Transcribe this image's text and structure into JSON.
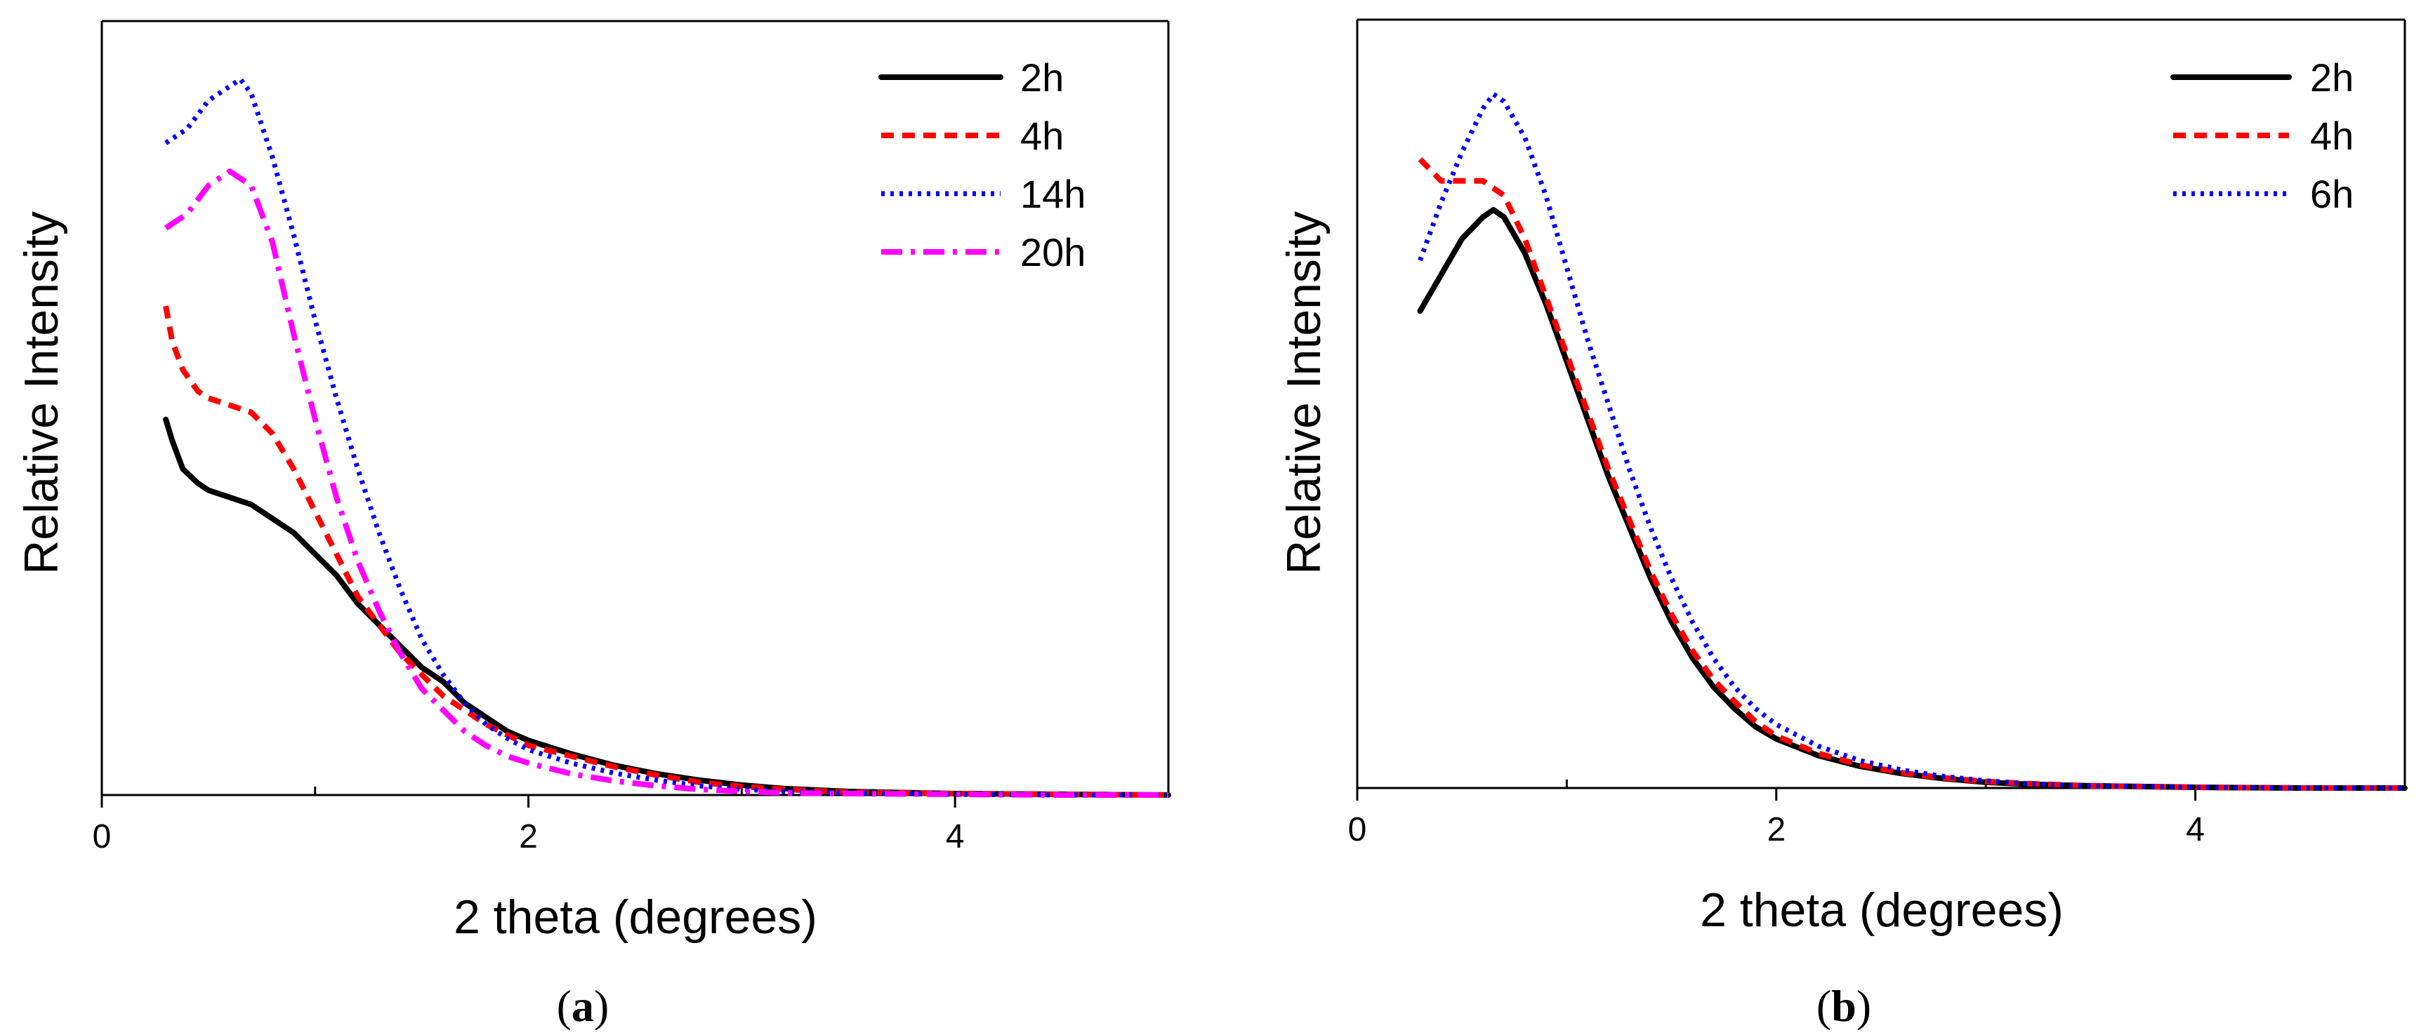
{
  "chart_data": [
    {
      "type": "line",
      "panel_label": "a",
      "title": "",
      "xlabel": "2 theta (degrees)",
      "ylabel": "Relative Intensity",
      "xlim": [
        0,
        5
      ],
      "ylim": [
        0,
        1.0
      ],
      "xticks": [
        0,
        2,
        4
      ],
      "minor_xticks": [
        1,
        3,
        5
      ],
      "yticks_shown": false,
      "legend_position": "top-right",
      "series": [
        {
          "name": "2h",
          "color": "#000000",
          "style": "solid",
          "x": [
            0.3,
            0.33,
            0.38,
            0.45,
            0.5,
            0.6,
            0.7,
            0.8,
            0.9,
            1.0,
            1.1,
            1.2,
            1.3,
            1.4,
            1.5,
            1.6,
            1.7,
            1.8,
            1.9,
            2.0,
            2.2,
            2.4,
            2.6,
            2.8,
            3.0,
            3.2,
            3.5,
            4.0,
            4.5,
            5.0
          ],
          "y": [
            0.53,
            0.5,
            0.46,
            0.44,
            0.43,
            0.42,
            0.41,
            0.39,
            0.37,
            0.34,
            0.31,
            0.27,
            0.24,
            0.21,
            0.18,
            0.16,
            0.13,
            0.11,
            0.09,
            0.077,
            0.058,
            0.042,
            0.03,
            0.021,
            0.014,
            0.009,
            0.005,
            0.002,
            0.001,
            0.0
          ]
        },
        {
          "name": "4h",
          "color": "#ff0000",
          "style": "dashed",
          "x": [
            0.3,
            0.33,
            0.38,
            0.45,
            0.5,
            0.6,
            0.7,
            0.8,
            0.9,
            1.0,
            1.1,
            1.2,
            1.3,
            1.4,
            1.5,
            1.6,
            1.7,
            1.8,
            1.9,
            2.0,
            2.2,
            2.4,
            2.6,
            2.8,
            3.0,
            3.2,
            3.5,
            4.0,
            4.5,
            5.0
          ],
          "y": [
            0.69,
            0.64,
            0.6,
            0.57,
            0.56,
            0.55,
            0.54,
            0.51,
            0.46,
            0.4,
            0.34,
            0.28,
            0.24,
            0.2,
            0.17,
            0.14,
            0.12,
            0.1,
            0.085,
            0.07,
            0.055,
            0.04,
            0.028,
            0.018,
            0.012,
            0.008,
            0.004,
            0.002,
            0.001,
            0.0
          ]
        },
        {
          "name": "14h",
          "color": "#0000ff",
          "style": "dotted",
          "x": [
            0.3,
            0.4,
            0.5,
            0.6,
            0.65,
            0.7,
            0.8,
            0.9,
            1.0,
            1.1,
            1.2,
            1.3,
            1.4,
            1.5,
            1.6,
            1.7,
            1.8,
            1.9,
            2.0,
            2.2,
            2.4,
            2.6,
            2.8,
            3.0,
            3.2,
            3.5,
            4.0,
            4.5,
            5.0
          ],
          "y": [
            0.92,
            0.94,
            0.98,
            1.0,
            1.01,
            0.99,
            0.9,
            0.79,
            0.67,
            0.56,
            0.46,
            0.37,
            0.29,
            0.22,
            0.17,
            0.13,
            0.1,
            0.08,
            0.064,
            0.045,
            0.031,
            0.021,
            0.013,
            0.008,
            0.005,
            0.003,
            0.001,
            0.0,
            0.0
          ]
        },
        {
          "name": "20h",
          "color": "#ff00ff",
          "style": "dashdot",
          "x": [
            0.3,
            0.4,
            0.5,
            0.6,
            0.7,
            0.8,
            0.9,
            1.0,
            1.1,
            1.2,
            1.3,
            1.4,
            1.5,
            1.6,
            1.7,
            1.8,
            1.9,
            2.0,
            2.2,
            2.4,
            2.6,
            2.8,
            3.0,
            3.2,
            3.5,
            4.0,
            4.5,
            5.0
          ],
          "y": [
            0.8,
            0.82,
            0.86,
            0.88,
            0.86,
            0.78,
            0.65,
            0.53,
            0.42,
            0.33,
            0.26,
            0.2,
            0.15,
            0.12,
            0.09,
            0.07,
            0.055,
            0.045,
            0.03,
            0.02,
            0.013,
            0.008,
            0.005,
            0.003,
            0.002,
            0.001,
            0.0,
            0.0
          ]
        }
      ]
    },
    {
      "type": "line",
      "panel_label": "b",
      "title": "",
      "xlabel": "2 theta (degrees)",
      "ylabel": "Relative Intensity",
      "xlim": [
        0,
        5
      ],
      "ylim": [
        0,
        1.0
      ],
      "xticks": [
        0,
        2,
        4
      ],
      "minor_xticks": [
        1,
        3,
        5
      ],
      "yticks_shown": false,
      "legend_position": "top-right",
      "series": [
        {
          "name": "2h",
          "color": "#000000",
          "style": "solid",
          "x": [
            0.3,
            0.4,
            0.5,
            0.6,
            0.65,
            0.7,
            0.8,
            0.9,
            1.0,
            1.1,
            1.2,
            1.3,
            1.4,
            1.5,
            1.6,
            1.7,
            1.8,
            1.9,
            2.0,
            2.2,
            2.4,
            2.6,
            2.8,
            3.0,
            3.2,
            3.5,
            4.0,
            4.5,
            5.0
          ],
          "y": [
            0.66,
            0.71,
            0.76,
            0.79,
            0.8,
            0.79,
            0.74,
            0.67,
            0.59,
            0.51,
            0.43,
            0.36,
            0.29,
            0.23,
            0.18,
            0.14,
            0.11,
            0.085,
            0.068,
            0.045,
            0.03,
            0.02,
            0.013,
            0.008,
            0.005,
            0.003,
            0.001,
            0.0,
            0.0
          ]
        },
        {
          "name": "4h",
          "color": "#ff0000",
          "style": "dashed",
          "x": [
            0.3,
            0.4,
            0.5,
            0.6,
            0.7,
            0.8,
            0.9,
            1.0,
            1.1,
            1.2,
            1.3,
            1.4,
            1.5,
            1.6,
            1.7,
            1.8,
            1.9,
            2.0,
            2.2,
            2.4,
            2.6,
            2.8,
            3.0,
            3.2,
            3.5,
            4.0,
            4.5,
            5.0
          ],
          "y": [
            0.87,
            0.84,
            0.84,
            0.84,
            0.82,
            0.76,
            0.68,
            0.6,
            0.52,
            0.44,
            0.37,
            0.3,
            0.24,
            0.19,
            0.15,
            0.12,
            0.092,
            0.072,
            0.048,
            0.032,
            0.021,
            0.014,
            0.009,
            0.006,
            0.003,
            0.001,
            0.0,
            0.0
          ]
        },
        {
          "name": "6h",
          "color": "#0000ff",
          "style": "dotted",
          "x": [
            0.3,
            0.4,
            0.5,
            0.6,
            0.65,
            0.7,
            0.8,
            0.9,
            1.0,
            1.1,
            1.2,
            1.3,
            1.4,
            1.5,
            1.6,
            1.7,
            1.8,
            1.9,
            2.0,
            2.2,
            2.4,
            2.6,
            2.8,
            3.0,
            3.2,
            3.5,
            4.0,
            4.5,
            5.0
          ],
          "y": [
            0.73,
            0.81,
            0.88,
            0.94,
            0.96,
            0.95,
            0.9,
            0.82,
            0.72,
            0.62,
            0.53,
            0.44,
            0.36,
            0.29,
            0.23,
            0.18,
            0.14,
            0.11,
            0.088,
            0.058,
            0.038,
            0.025,
            0.016,
            0.01,
            0.006,
            0.003,
            0.001,
            0.0,
            0.0
          ]
        }
      ]
    }
  ]
}
